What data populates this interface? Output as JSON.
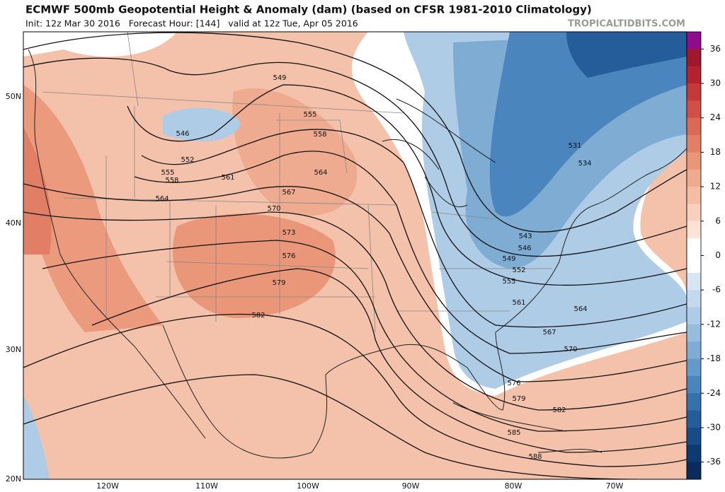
{
  "header": {
    "title": "ECMWF 500mb Geopotential Height & Anomaly (dam) (based on CFSR 1981-2010 Climatology)",
    "subtitle": "Init: 12z Mar 30 2016   Forecast Hour: [144]   valid at 12z Tue, Apr 05 2016",
    "watermark": "TROPICALTIDBITS.COM"
  },
  "map": {
    "latitude_labels": [
      "50N",
      "40N",
      "30N",
      "20N"
    ],
    "longitude_labels": [
      "120W",
      "110W",
      "100W",
      "90W",
      "80W",
      "70W"
    ],
    "contour_labels": [
      549,
      546,
      552,
      555,
      558,
      561,
      564,
      555,
      558,
      564,
      567,
      570,
      573,
      576,
      579,
      582,
      531,
      534,
      543,
      546,
      549,
      552,
      555,
      561,
      564,
      567,
      570,
      576,
      579,
      582,
      585,
      588
    ]
  },
  "colorbar": {
    "range": [
      -39,
      39
    ],
    "ticks": [
      36,
      30,
      24,
      18,
      12,
      6,
      0,
      -6,
      -12,
      -18,
      -24,
      -30,
      -36
    ],
    "colors": [
      "#8e0c8e",
      "#9e1a2a",
      "#b2232d",
      "#c43a3a",
      "#d05048",
      "#db6957",
      "#e37f66",
      "#ea9679",
      "#efab8f",
      "#f3bea5",
      "#f7d1bd",
      "#fbe3d5",
      "#ffffff",
      "#ffffff",
      "#d7e6f3",
      "#c3d9ee",
      "#aecce6",
      "#96bddd",
      "#7eacd3",
      "#6499c9",
      "#4b85bd",
      "#3670ad",
      "#255d9a",
      "#184b87",
      "#0e3a73",
      "#0a2b5c"
    ]
  }
}
